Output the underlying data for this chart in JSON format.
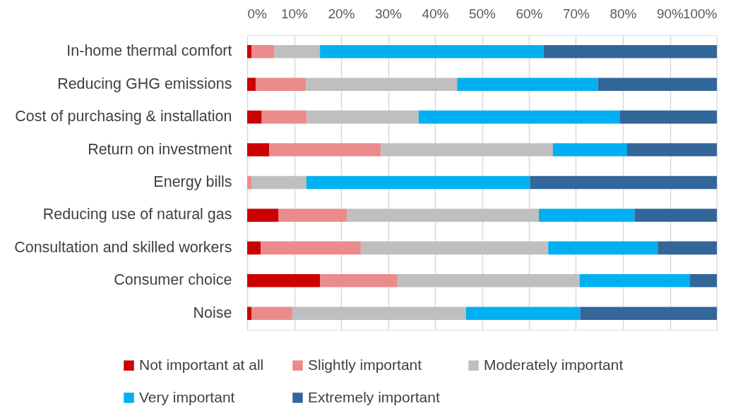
{
  "chart_data": {
    "type": "bar",
    "orientation": "horizontal",
    "stacked": true,
    "categories": [
      "In-home thermal comfort",
      "Reducing GHG emissions",
      "Cost of purchasing & installation",
      "Return on investment",
      "Energy bills",
      "Reducing use of natural gas",
      "Consultation and skilled workers",
      "Consumer choice",
      "Noise"
    ],
    "series": [
      {
        "name": "Not important at all",
        "color": "#cc0000",
        "values": [
          0.9,
          1.8,
          3.1,
          4.7,
          0,
          6.7,
          2.9,
          15.5,
          0.9
        ]
      },
      {
        "name": "Slightly important",
        "color": "#eb8b8b",
        "values": [
          4.9,
          10.7,
          9.6,
          23.8,
          0.9,
          14.5,
          21.3,
          16.5,
          8.7
        ]
      },
      {
        "name": "Moderately important",
        "color": "#bfbfbf",
        "values": [
          9.7,
          32.2,
          23.8,
          36.6,
          11.7,
          40.9,
          39.9,
          38.8,
          37.0
        ]
      },
      {
        "name": "Very important",
        "color": "#00b0f0",
        "values": [
          47.6,
          30.0,
          42.9,
          15.8,
          47.6,
          20.4,
          23.3,
          23.4,
          24.3
        ]
      },
      {
        "name": "Extremely important",
        "color": "#336699",
        "values": [
          36.9,
          25.3,
          20.6,
          19.1,
          39.8,
          17.5,
          12.6,
          5.8,
          29.1
        ]
      }
    ],
    "xlim": [
      0,
      100
    ],
    "xticks": [
      {
        "value": 0,
        "label": "0%"
      },
      {
        "value": 10,
        "label": "10%"
      },
      {
        "value": 20,
        "label": "20%"
      },
      {
        "value": 30,
        "label": "30%"
      },
      {
        "value": 40,
        "label": "40%"
      },
      {
        "value": 50,
        "label": "50%"
      },
      {
        "value": 60,
        "label": "60%"
      },
      {
        "value": 70,
        "label": "70%"
      },
      {
        "value": 80,
        "label": "80%"
      },
      {
        "value": 90,
        "label": "90%"
      },
      {
        "value": 100,
        "label": "100%"
      }
    ],
    "grid": "x",
    "legend": "bottom"
  }
}
